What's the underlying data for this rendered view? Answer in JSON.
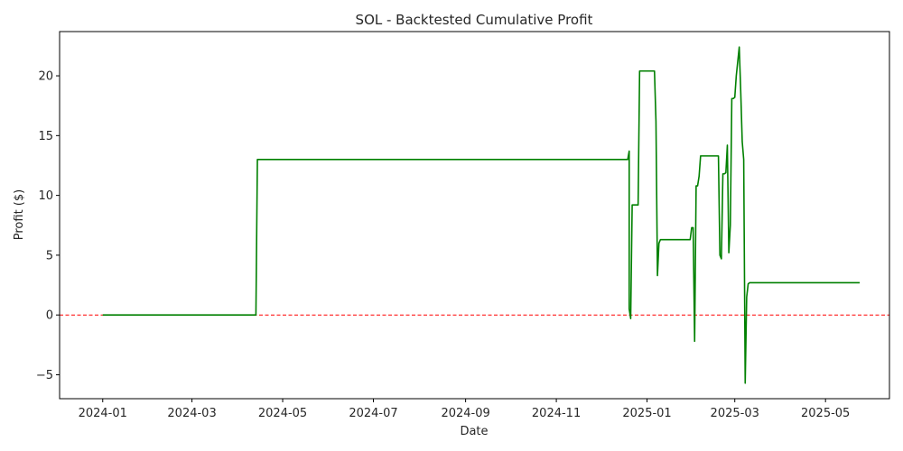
{
  "chart_data": {
    "type": "line",
    "title": "SOL - Backtested Cumulative Profit",
    "xlabel": "Date",
    "ylabel": "Profit ($)",
    "xlim": [
      "2023-12-03",
      "2025-06-13"
    ],
    "ylim": [
      -7.0,
      23.7
    ],
    "x_ticks": [
      "2024-01",
      "2024-03",
      "2024-05",
      "2024-07",
      "2024-09",
      "2024-11",
      "2025-01",
      "2025-03",
      "2025-05"
    ],
    "y_ticks": [
      -5,
      0,
      5,
      10,
      15,
      20
    ],
    "y_tick_labels": [
      "−5",
      "0",
      "5",
      "10",
      "15",
      "20"
    ],
    "grid": false,
    "legend": "none",
    "reference_line": {
      "y": 0,
      "color": "#ff0000",
      "style": "dashed"
    },
    "series": [
      {
        "color": "#008000",
        "x": [
          "2024-01-01",
          "2024-04-13",
          "2024-04-14",
          "2024-12-19",
          "2024-12-20",
          "2024-12-20",
          "2024-12-21",
          "2024-12-22",
          "2024-12-26",
          "2024-12-27",
          "2025-01-06",
          "2025-01-07",
          "2025-01-08",
          "2025-01-09",
          "2025-01-10",
          "2025-01-30",
          "2025-01-31",
          "2025-02-01",
          "2025-02-02",
          "2025-02-03",
          "2025-02-04",
          "2025-02-05",
          "2025-02-06",
          "2025-02-07",
          "2025-02-18",
          "2025-02-19",
          "2025-02-20",
          "2025-02-21",
          "2025-02-22",
          "2025-02-23",
          "2025-02-24",
          "2025-02-25",
          "2025-02-26",
          "2025-02-27",
          "2025-02-28",
          "2025-03-01",
          "2025-03-02",
          "2025-03-04",
          "2025-03-05",
          "2025-03-06",
          "2025-03-07",
          "2025-03-08",
          "2025-03-09",
          "2025-03-10",
          "2025-03-11",
          "2025-05-24"
        ],
        "y": [
          0,
          0,
          13,
          13,
          13.7,
          0.5,
          -0.3,
          9.2,
          9.2,
          20.4,
          20.4,
          16.2,
          3.3,
          6,
          6.3,
          6.3,
          7.3,
          7.3,
          -2.2,
          10.8,
          10.8,
          11.6,
          13.3,
          13.3,
          13.3,
          5,
          4.7,
          11.8,
          11.8,
          11.9,
          14.2,
          5.2,
          7.5,
          18.1,
          18.1,
          18.2,
          20,
          22.4,
          18.7,
          14.5,
          13,
          -5.7,
          1.5,
          2.6,
          2.7,
          2.7
        ]
      }
    ]
  }
}
